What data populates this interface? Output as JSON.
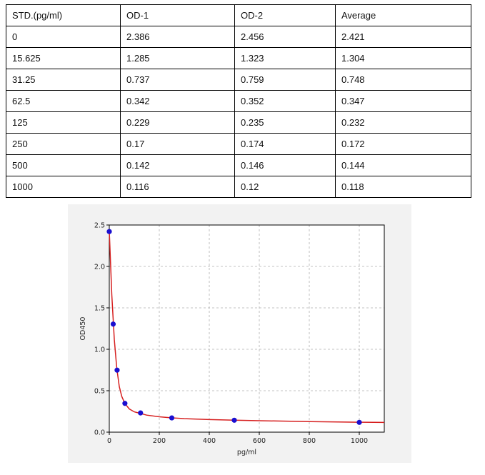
{
  "table": {
    "headers": [
      "STD.(pg/ml)",
      "OD-1",
      "OD-2",
      "Average"
    ],
    "rows": [
      [
        "0",
        "2.386",
        "2.456",
        "2.421"
      ],
      [
        "15.625",
        "1.285",
        "1.323",
        "1.304"
      ],
      [
        "31.25",
        "0.737",
        "0.759",
        "0.748"
      ],
      [
        "62.5",
        "0.342",
        "0.352",
        "0.347"
      ],
      [
        "125",
        "0.229",
        "0.235",
        "0.232"
      ],
      [
        "250",
        "0.17",
        "0.174",
        "0.172"
      ],
      [
        "500",
        "0.142",
        "0.146",
        "0.144"
      ],
      [
        "1000",
        "0.116",
        "0.12",
        "0.118"
      ]
    ]
  },
  "chart_data": {
    "type": "scatter",
    "title": "",
    "xlabel": "pg/ml",
    "ylabel": "OD450",
    "xlim": [
      0,
      1100
    ],
    "ylim": [
      0,
      2.5
    ],
    "xticks": [
      "0",
      "200",
      "400",
      "600",
      "800",
      "1000"
    ],
    "yticks": [
      "0.0",
      "0.5",
      "1.0",
      "1.5",
      "2.0",
      "2.5"
    ],
    "grid": true,
    "points": {
      "x": [
        0,
        15.625,
        31.25,
        62.5,
        125,
        250,
        500,
        1000
      ],
      "y": [
        2.421,
        1.304,
        0.748,
        0.347,
        0.232,
        0.172,
        0.144,
        0.118
      ]
    },
    "fit_curve": {
      "x": [
        0,
        10,
        20,
        30,
        40,
        50,
        62.5,
        80,
        100,
        125,
        150,
        200,
        250,
        300,
        400,
        500,
        600,
        800,
        1000,
        1100
      ],
      "y": [
        2.43,
        1.66,
        1.12,
        0.77,
        0.55,
        0.43,
        0.345,
        0.28,
        0.245,
        0.225,
        0.205,
        0.185,
        0.172,
        0.163,
        0.152,
        0.145,
        0.138,
        0.128,
        0.12,
        0.117
      ]
    },
    "colors": {
      "points": "#1a0fd0",
      "curve": "#d62020",
      "grid": "#b0b0b0"
    }
  }
}
